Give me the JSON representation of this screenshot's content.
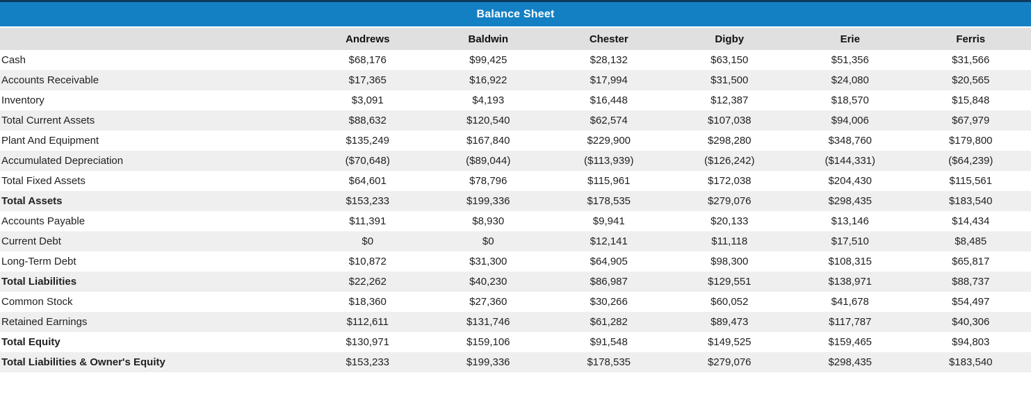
{
  "title": "Balance Sheet",
  "columns": [
    "Andrews",
    "Baldwin",
    "Chester",
    "Digby",
    "Erie",
    "Ferris"
  ],
  "rows": [
    {
      "label": "Cash",
      "bold": false,
      "values": [
        "$68,176",
        "$99,425",
        "$28,132",
        "$63,150",
        "$51,356",
        "$31,566"
      ]
    },
    {
      "label": "Accounts Receivable",
      "bold": false,
      "values": [
        "$17,365",
        "$16,922",
        "$17,994",
        "$31,500",
        "$24,080",
        "$20,565"
      ]
    },
    {
      "label": "Inventory",
      "bold": false,
      "values": [
        "$3,091",
        "$4,193",
        "$16,448",
        "$12,387",
        "$18,570",
        "$15,848"
      ]
    },
    {
      "label": "Total Current Assets",
      "bold": false,
      "values": [
        "$88,632",
        "$120,540",
        "$62,574",
        "$107,038",
        "$94,006",
        "$67,979"
      ]
    },
    {
      "label": "Plant And Equipment",
      "bold": false,
      "values": [
        "$135,249",
        "$167,840",
        "$229,900",
        "$298,280",
        "$348,760",
        "$179,800"
      ]
    },
    {
      "label": "Accumulated Depreciation",
      "bold": false,
      "values": [
        "($70,648)",
        "($89,044)",
        "($113,939)",
        "($126,242)",
        "($144,331)",
        "($64,239)"
      ]
    },
    {
      "label": "Total Fixed Assets",
      "bold": false,
      "values": [
        "$64,601",
        "$78,796",
        "$115,961",
        "$172,038",
        "$204,430",
        "$115,561"
      ]
    },
    {
      "label": "Total Assets",
      "bold": true,
      "values": [
        "$153,233",
        "$199,336",
        "$178,535",
        "$279,076",
        "$298,435",
        "$183,540"
      ]
    },
    {
      "label": "Accounts Payable",
      "bold": false,
      "values": [
        "$11,391",
        "$8,930",
        "$9,941",
        "$20,133",
        "$13,146",
        "$14,434"
      ]
    },
    {
      "label": "Current Debt",
      "bold": false,
      "values": [
        "$0",
        "$0",
        "$12,141",
        "$11,118",
        "$17,510",
        "$8,485"
      ]
    },
    {
      "label": "Long-Term Debt",
      "bold": false,
      "values": [
        "$10,872",
        "$31,300",
        "$64,905",
        "$98,300",
        "$108,315",
        "$65,817"
      ]
    },
    {
      "label": "Total Liabilities",
      "bold": true,
      "values": [
        "$22,262",
        "$40,230",
        "$86,987",
        "$129,551",
        "$138,971",
        "$88,737"
      ]
    },
    {
      "label": "Common Stock",
      "bold": false,
      "values": [
        "$18,360",
        "$27,360",
        "$30,266",
        "$60,052",
        "$41,678",
        "$54,497"
      ]
    },
    {
      "label": "Retained Earnings",
      "bold": false,
      "values": [
        "$112,611",
        "$131,746",
        "$61,282",
        "$89,473",
        "$117,787",
        "$40,306"
      ]
    },
    {
      "label": "Total Equity",
      "bold": true,
      "values": [
        "$130,971",
        "$159,106",
        "$91,548",
        "$149,525",
        "$159,465",
        "$94,803"
      ]
    },
    {
      "label": "Total Liabilities & Owner's Equity",
      "bold": true,
      "values": [
        "$153,233",
        "$199,336",
        "$178,535",
        "$279,076",
        "$298,435",
        "$183,540"
      ]
    }
  ],
  "colors": {
    "header_blue": "#1480c4",
    "header_gray": "#e0e0e0",
    "row_alt_gray": "#efefef",
    "top_edge": "#0d3a5c"
  }
}
